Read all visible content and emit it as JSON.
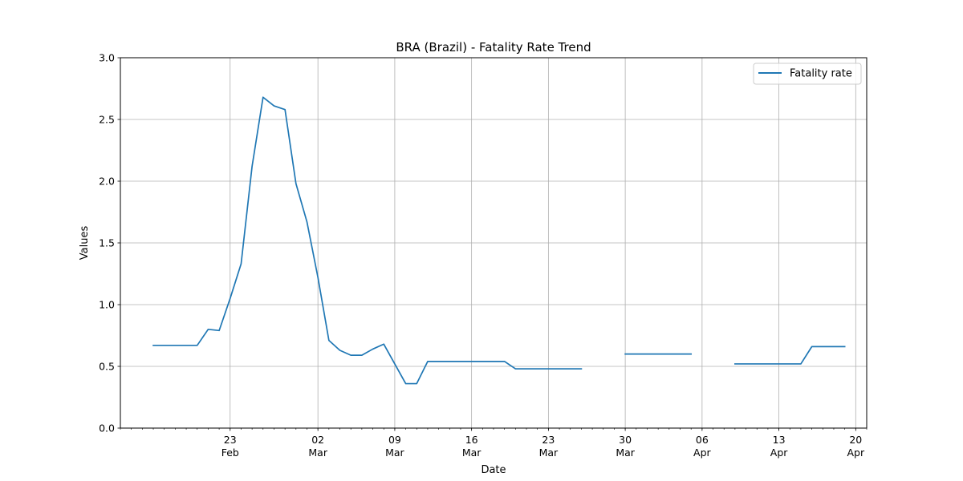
{
  "chart_data": {
    "type": "line",
    "title": "BRA (Brazil) - Fatality Rate Trend",
    "xlabel": "Date",
    "ylabel": "Values",
    "ylim": [
      0,
      3.0
    ],
    "xlim": [
      "2020-02-13",
      "2020-04-21"
    ],
    "grid": true,
    "legend_position": "top-right",
    "y_ticks": [
      "0.0",
      "0.5",
      "1.0",
      "1.5",
      "2.0",
      "2.5",
      "3.0"
    ],
    "x_ticks": [
      {
        "date": "2020-02-23",
        "day": "23",
        "month": "Feb"
      },
      {
        "date": "2020-03-02",
        "day": "02",
        "month": "Mar"
      },
      {
        "date": "2020-03-09",
        "day": "09",
        "month": "Mar"
      },
      {
        "date": "2020-03-16",
        "day": "16",
        "month": "Mar"
      },
      {
        "date": "2020-03-23",
        "day": "23",
        "month": "Mar"
      },
      {
        "date": "2020-03-30",
        "day": "30",
        "month": "Mar"
      },
      {
        "date": "2020-04-06",
        "day": "06",
        "month": "Apr"
      },
      {
        "date": "2020-04-13",
        "day": "13",
        "month": "Apr"
      },
      {
        "date": "2020-04-20",
        "day": "20",
        "month": "Apr"
      }
    ],
    "series": [
      {
        "name": "Fatality rate",
        "color": "#1f77b4",
        "segments": [
          [
            [
              "2020-02-16",
              0.67
            ],
            [
              "2020-02-17",
              0.67
            ],
            [
              "2020-02-18",
              0.67
            ],
            [
              "2020-02-19",
              0.67
            ],
            [
              "2020-02-20",
              0.67
            ],
            [
              "2020-02-21",
              0.8
            ],
            [
              "2020-02-22",
              0.79
            ],
            [
              "2020-02-23",
              1.05
            ],
            [
              "2020-02-24",
              1.33
            ],
            [
              "2020-02-25",
              2.12
            ],
            [
              "2020-02-26",
              2.68
            ],
            [
              "2020-02-27",
              2.61
            ],
            [
              "2020-02-28",
              2.58
            ],
            [
              "2020-02-29",
              1.98
            ],
            [
              "2020-03-01",
              1.67
            ],
            [
              "2020-03-02",
              1.22
            ],
            [
              "2020-03-03",
              0.71
            ],
            [
              "2020-03-04",
              0.63
            ],
            [
              "2020-03-05",
              0.59
            ],
            [
              "2020-03-06",
              0.59
            ],
            [
              "2020-03-07",
              0.64
            ],
            [
              "2020-03-08",
              0.68
            ],
            [
              "2020-03-09",
              0.52
            ],
            [
              "2020-03-10",
              0.36
            ],
            [
              "2020-03-11",
              0.36
            ],
            [
              "2020-03-12",
              0.54
            ],
            [
              "2020-03-13",
              0.54
            ],
            [
              "2020-03-14",
              0.54
            ],
            [
              "2020-03-15",
              0.54
            ],
            [
              "2020-03-16",
              0.54
            ],
            [
              "2020-03-17",
              0.54
            ],
            [
              "2020-03-18",
              0.54
            ],
            [
              "2020-03-19",
              0.54
            ],
            [
              "2020-03-20",
              0.48
            ],
            [
              "2020-03-21",
              0.48
            ],
            [
              "2020-03-22",
              0.48
            ],
            [
              "2020-03-23",
              0.48
            ],
            [
              "2020-03-24",
              0.48
            ],
            [
              "2020-03-25",
              0.48
            ],
            [
              "2020-03-26",
              0.48
            ]
          ],
          [
            [
              "2020-03-30",
              0.6
            ],
            [
              "2020-03-31",
              0.6
            ],
            [
              "2020-04-01",
              0.6
            ],
            [
              "2020-04-02",
              0.6
            ],
            [
              "2020-04-03",
              0.6
            ],
            [
              "2020-04-04",
              0.6
            ],
            [
              "2020-04-05",
              0.6
            ]
          ],
          [
            [
              "2020-04-09",
              0.52
            ],
            [
              "2020-04-10",
              0.52
            ],
            [
              "2020-04-11",
              0.52
            ],
            [
              "2020-04-12",
              0.52
            ],
            [
              "2020-04-13",
              0.52
            ],
            [
              "2020-04-14",
              0.52
            ],
            [
              "2020-04-15",
              0.52
            ],
            [
              "2020-04-16",
              0.66
            ],
            [
              "2020-04-17",
              0.66
            ],
            [
              "2020-04-18",
              0.66
            ],
            [
              "2020-04-19",
              0.66
            ]
          ]
        ]
      }
    ]
  }
}
